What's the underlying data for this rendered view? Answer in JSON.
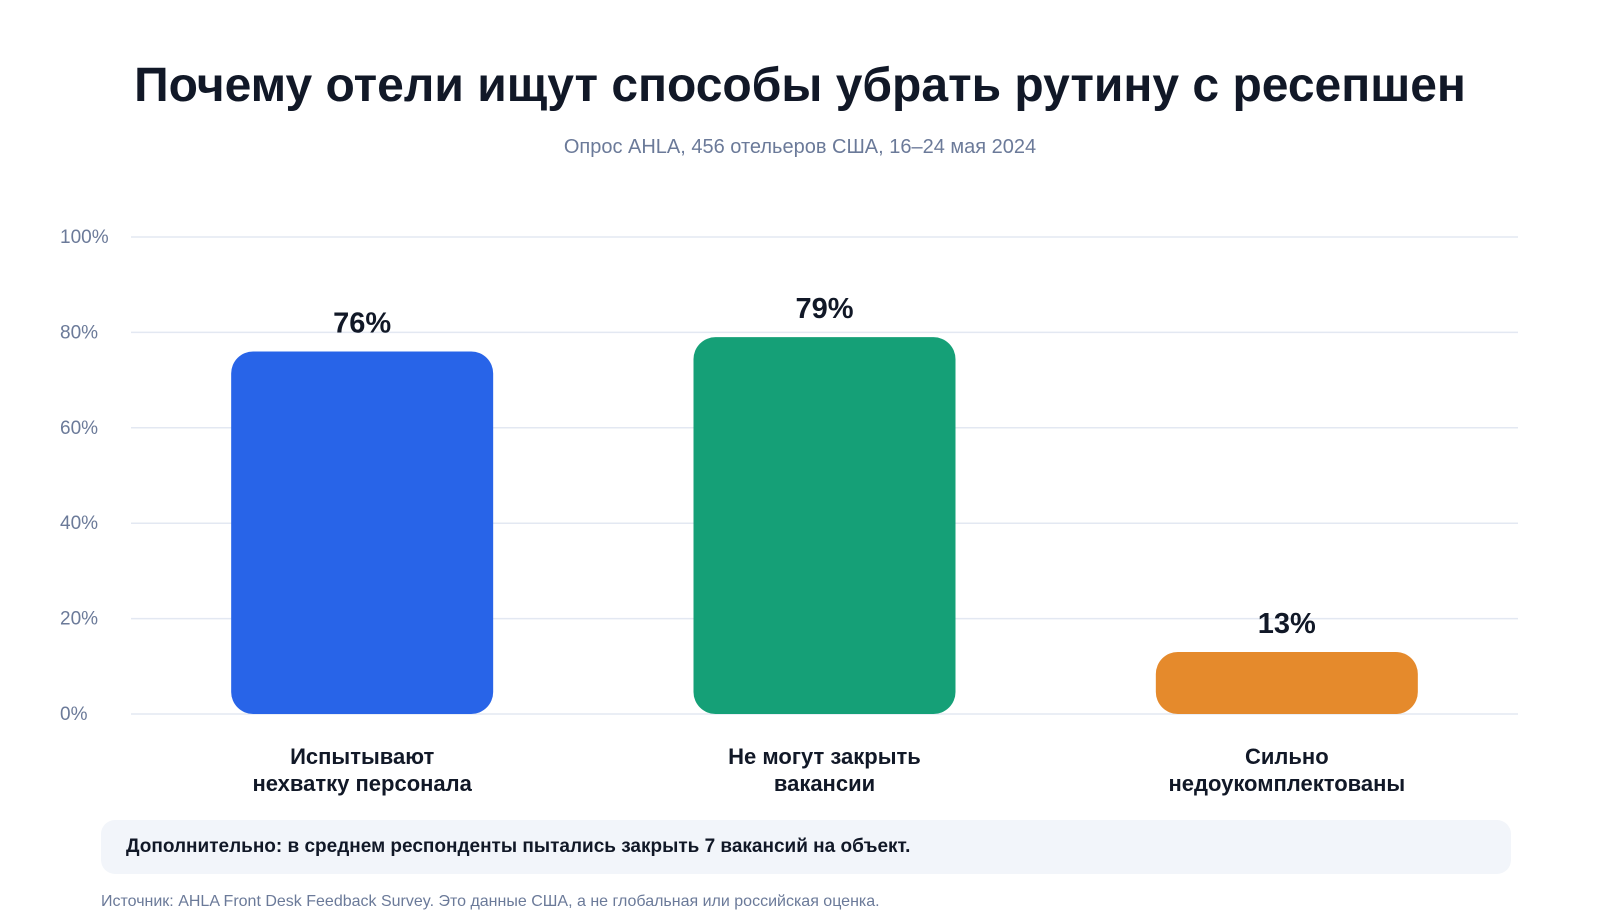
{
  "chart_data": {
    "type": "bar",
    "title": "Почему отели ищут способы убрать рутину с ресепшен",
    "subtitle": "Опрос AHLA, 456 отельеров США, 16–24 мая 2024",
    "categories": [
      [
        "Испытывают",
        "нехватку персонала"
      ],
      [
        "Не могут закрыть",
        "вакансии"
      ],
      [
        "Сильно",
        "недоукомплектованы"
      ]
    ],
    "values": [
      76,
      79,
      13
    ],
    "value_labels": [
      "76%",
      "79%",
      "13%"
    ],
    "colors": [
      "#2864e8",
      "#15a077",
      "#e58a2c"
    ],
    "ylim": [
      0,
      100
    ],
    "yticks": [
      0,
      20,
      40,
      60,
      80,
      100
    ],
    "ytick_labels": [
      "0%",
      "20%",
      "40%",
      "60%",
      "80%",
      "100%"
    ],
    "grid": true,
    "xlabel": "",
    "ylabel": ""
  },
  "note": "Дополнительно: в среднем респонденты пытались закрыть 7 вакансий на объект.",
  "source": "Источник: AHLA Front Desk Feedback Survey. Это данные США, а не глобальная или российская оценка."
}
